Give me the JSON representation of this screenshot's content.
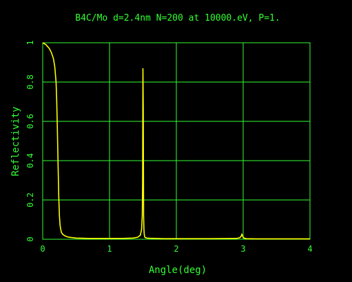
{
  "chart_data": {
    "type": "line",
    "title": "B4C/Mo d=2.4nm N=200 at 10000.eV, P=1.",
    "xlabel": "Angle(deg)",
    "ylabel": "Reflectivity",
    "xlim": [
      0,
      4
    ],
    "ylim": [
      0,
      1
    ],
    "xticks": [
      0,
      1,
      2,
      3,
      4
    ],
    "xtick_labels": [
      "0",
      "1",
      "2",
      "3",
      "4"
    ],
    "yticks": [
      0,
      0.2,
      0.4,
      0.6,
      0.8,
      1
    ],
    "ytick_labels": [
      "0",
      "0.2",
      "0.4",
      "0.6",
      "0.8",
      "1"
    ],
    "grid": true,
    "colors": {
      "background": "#000000",
      "axes": "#33ff33",
      "text": "#33ff33",
      "series": "#ffff00"
    },
    "series": [
      {
        "x": [
          0,
          0.05,
          0.1,
          0.13,
          0.16,
          0.18,
          0.2,
          0.21,
          0.22,
          0.23,
          0.24,
          0.25,
          0.26,
          0.27,
          0.28,
          0.3,
          0.33,
          0.36,
          0.4,
          0.45,
          0.5,
          0.6,
          0.7,
          0.8,
          1.0,
          1.2,
          1.35,
          1.42,
          1.46,
          1.48,
          1.49,
          1.495,
          1.5,
          1.505,
          1.51,
          1.515,
          1.52,
          1.525,
          1.53,
          1.54,
          1.56,
          1.6,
          1.7,
          1.8,
          2.0,
          2.5,
          2.9,
          2.95,
          2.97,
          2.98,
          3.0,
          3.02,
          3.05,
          3.2,
          3.6,
          4.0
        ],
        "y": [
          1.0,
          0.99,
          0.97,
          0.95,
          0.92,
          0.88,
          0.8,
          0.7,
          0.55,
          0.38,
          0.22,
          0.12,
          0.07,
          0.05,
          0.035,
          0.025,
          0.018,
          0.013,
          0.01,
          0.008,
          0.006,
          0.005,
          0.004,
          0.004,
          0.004,
          0.004,
          0.006,
          0.01,
          0.02,
          0.05,
          0.12,
          0.29,
          0.87,
          0.66,
          0.12,
          0.05,
          0.025,
          0.015,
          0.01,
          0.008,
          0.006,
          0.005,
          0.004,
          0.003,
          0.003,
          0.003,
          0.004,
          0.008,
          0.015,
          0.025,
          0.01,
          0.005,
          0.003,
          0.002,
          0.002,
          0.002
        ]
      }
    ]
  }
}
